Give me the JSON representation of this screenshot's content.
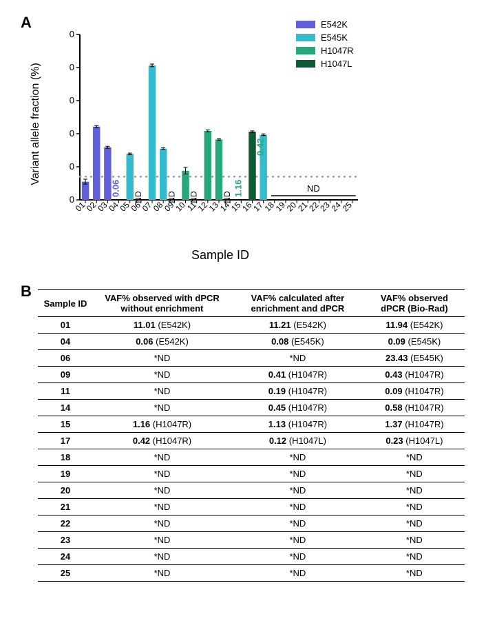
{
  "panelA": {
    "label": "A",
    "y_axis": {
      "title": "Variant allele fraction (%)",
      "min": 0,
      "max": 100,
      "step": 20
    },
    "x_axis": {
      "title": "Sample ID"
    },
    "categories": [
      "01",
      "02",
      "03",
      "04",
      "05",
      "06",
      "07",
      "08",
      "09",
      "10",
      "11",
      "12",
      "13",
      "14",
      "15",
      "16",
      "17",
      "18",
      "19",
      "20",
      "21",
      "22",
      "23",
      "24",
      "25"
    ],
    "dotted_line_y": 14,
    "series": {
      "E542K": {
        "color": "#6160d8"
      },
      "E545K": {
        "color": "#32bccd"
      },
      "H1047R": {
        "color": "#28a878"
      },
      "H1047L": {
        "color": "#0e5a34"
      }
    },
    "legend_order": [
      "E542K",
      "E545K",
      "H1047R",
      "H1047L"
    ],
    "bars": [
      {
        "sample": "01",
        "series": "E542K",
        "value": 11.0,
        "err": 1.5
      },
      {
        "sample": "02",
        "series": "E542K",
        "value": 44.3,
        "err": 0.6
      },
      {
        "sample": "03",
        "series": "E542K",
        "value": 31.8,
        "err": 0.6
      },
      {
        "sample": "05",
        "series": "E545K",
        "value": 27.8,
        "err": 0.5
      },
      {
        "sample": "07",
        "series": "E545K",
        "value": 81.3,
        "err": 0.8
      },
      {
        "sample": "08",
        "series": "E545K",
        "value": 31.0,
        "err": 0.5
      },
      {
        "sample": "10",
        "series": "H1047R",
        "value": 17.6,
        "err": 2.0
      },
      {
        "sample": "12",
        "series": "H1047R",
        "value": 41.7,
        "err": 0.6
      },
      {
        "sample": "13",
        "series": "H1047R",
        "value": 36.5,
        "err": 0.5
      },
      {
        "sample": "16",
        "series": "H1047L",
        "value": 41.2,
        "err": 0.5
      },
      {
        "sample": "17",
        "series": "E545K",
        "value": 39.4,
        "err": 0.5
      }
    ],
    "value_labels": [
      {
        "sample": "04",
        "text": "0.06",
        "color": "#6160d8",
        "rot": true
      },
      {
        "sample": "15",
        "text": "1.16",
        "color": "#28a878",
        "rot": true
      },
      {
        "sample": "17",
        "text": "0.42",
        "color": "#28a878",
        "rot": true,
        "offsetY": -60
      }
    ],
    "nd_labels": [
      {
        "sample": "06"
      },
      {
        "sample": "09"
      },
      {
        "sample": "11"
      },
      {
        "sample": "14"
      }
    ],
    "nd_range": {
      "from": "18",
      "to": "25",
      "text": "ND"
    },
    "nd_text": "ND"
  },
  "panelB": {
    "label": "B",
    "columns": [
      "Sample ID",
      "VAF% observed with dPCR without enrichment",
      "VAF% calculated after enrichment and dPCR",
      "VAF% observed dPCR (Bio-Rad)"
    ],
    "rows": [
      {
        "id": "01",
        "c1": {
          "v": "11.01",
          "m": "E542K"
        },
        "c2": {
          "v": "11.21",
          "m": "E542K"
        },
        "c3": {
          "v": "11.94",
          "m": "E542K"
        }
      },
      {
        "id": "04",
        "c1": {
          "v": "0.06",
          "m": "E542K"
        },
        "c2": {
          "v": "0.08",
          "m": "E545K"
        },
        "c3": {
          "v": "0.09",
          "m": "E545K"
        }
      },
      {
        "id": "06",
        "c1": {
          "nd": true
        },
        "c2": {
          "nd": true
        },
        "c3": {
          "v": "23.43",
          "m": "E545K"
        }
      },
      {
        "id": "09",
        "c1": {
          "nd": true
        },
        "c2": {
          "v": "0.41",
          "m": "H1047R"
        },
        "c3": {
          "v": "0.43",
          "m": "H1047R"
        }
      },
      {
        "id": "11",
        "c1": {
          "nd": true
        },
        "c2": {
          "v": "0.19",
          "m": "H1047R"
        },
        "c3": {
          "v": "0.09",
          "m": "H1047R"
        }
      },
      {
        "id": "14",
        "c1": {
          "nd": true
        },
        "c2": {
          "v": "0.45",
          "m": "H1047R"
        },
        "c3": {
          "v": "0.58",
          "m": "H1047R"
        }
      },
      {
        "id": "15",
        "c1": {
          "v": "1.16",
          "m": "H1047R"
        },
        "c2": {
          "v": "1.13",
          "m": "H1047R"
        },
        "c3": {
          "v": "1.37",
          "m": "H1047R"
        }
      },
      {
        "id": "17",
        "c1": {
          "v": "0.42",
          "m": "H1047R"
        },
        "c2": {
          "v": "0.12",
          "m": "H1047L"
        },
        "c3": {
          "v": "0.23",
          "m": "H1047L"
        }
      },
      {
        "id": "18",
        "c1": {
          "nd": true
        },
        "c2": {
          "nd": true
        },
        "c3": {
          "nd": true
        }
      },
      {
        "id": "19",
        "c1": {
          "nd": true
        },
        "c2": {
          "nd": true
        },
        "c3": {
          "nd": true
        }
      },
      {
        "id": "20",
        "c1": {
          "nd": true
        },
        "c2": {
          "nd": true
        },
        "c3": {
          "nd": true
        }
      },
      {
        "id": "21",
        "c1": {
          "nd": true
        },
        "c2": {
          "nd": true
        },
        "c3": {
          "nd": true
        }
      },
      {
        "id": "22",
        "c1": {
          "nd": true
        },
        "c2": {
          "nd": true
        },
        "c3": {
          "nd": true
        }
      },
      {
        "id": "23",
        "c1": {
          "nd": true
        },
        "c2": {
          "nd": true
        },
        "c3": {
          "nd": true
        }
      },
      {
        "id": "24",
        "c1": {
          "nd": true
        },
        "c2": {
          "nd": true
        },
        "c3": {
          "nd": true
        }
      },
      {
        "id": "25",
        "c1": {
          "nd": true
        },
        "c2": {
          "nd": true
        },
        "c3": {
          "nd": true
        }
      }
    ],
    "nd_text": "*ND"
  }
}
